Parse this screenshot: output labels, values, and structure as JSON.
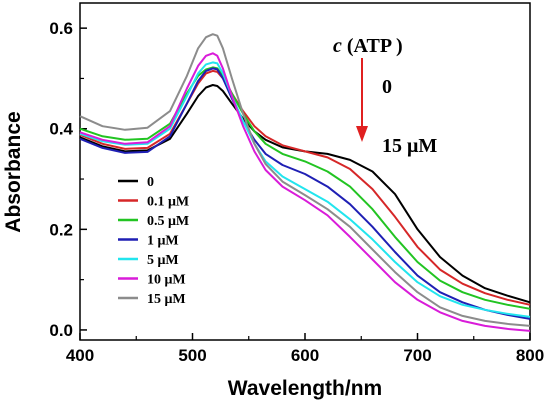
{
  "chart_data": {
    "type": "line",
    "xlabel": "Wavelength/nm",
    "ylabel": "Absorbance",
    "xlim": [
      400,
      800
    ],
    "ylim": [
      -0.02,
      0.65
    ],
    "xticks": [
      400,
      500,
      600,
      700,
      800
    ],
    "yticks": [
      0.0,
      0.2,
      0.4,
      0.6
    ],
    "grid": false,
    "legend_position": "bottom-left",
    "x": [
      400,
      420,
      440,
      460,
      480,
      495,
      505,
      512,
      518,
      522,
      527,
      535,
      545,
      555,
      565,
      580,
      600,
      620,
      640,
      660,
      680,
      700,
      720,
      740,
      760,
      780,
      800
    ],
    "series": [
      {
        "name": "0",
        "color": "#000000",
        "values": [
          0.383,
          0.365,
          0.355,
          0.357,
          0.38,
          0.43,
          0.465,
          0.482,
          0.487,
          0.485,
          0.475,
          0.45,
          0.42,
          0.395,
          0.378,
          0.363,
          0.355,
          0.35,
          0.338,
          0.315,
          0.27,
          0.2,
          0.145,
          0.108,
          0.083,
          0.068,
          0.055
        ]
      },
      {
        "name": "0.1 μM",
        "color": "#d62728",
        "values": [
          0.388,
          0.37,
          0.36,
          0.362,
          0.39,
          0.45,
          0.49,
          0.51,
          0.515,
          0.513,
          0.5,
          0.47,
          0.435,
          0.405,
          0.385,
          0.367,
          0.355,
          0.343,
          0.32,
          0.28,
          0.225,
          0.165,
          0.12,
          0.092,
          0.073,
          0.06,
          0.05
        ]
      },
      {
        "name": "0.5 μM",
        "color": "#22c422",
        "values": [
          0.4,
          0.385,
          0.378,
          0.38,
          0.41,
          0.47,
          0.505,
          0.518,
          0.522,
          0.52,
          0.505,
          0.47,
          0.43,
          0.395,
          0.37,
          0.35,
          0.335,
          0.315,
          0.285,
          0.24,
          0.185,
          0.135,
          0.098,
          0.075,
          0.06,
          0.05,
          0.042
        ]
      },
      {
        "name": "1 μM",
        "color": "#1f1fb4",
        "values": [
          0.38,
          0.362,
          0.352,
          0.354,
          0.385,
          0.45,
          0.495,
          0.515,
          0.52,
          0.518,
          0.5,
          0.46,
          0.415,
          0.378,
          0.35,
          0.328,
          0.31,
          0.285,
          0.25,
          0.205,
          0.155,
          0.108,
          0.075,
          0.055,
          0.04,
          0.03,
          0.022
        ]
      },
      {
        "name": "5 μM",
        "color": "#22e5ee",
        "values": [
          0.39,
          0.375,
          0.368,
          0.37,
          0.4,
          0.465,
          0.51,
          0.528,
          0.532,
          0.53,
          0.51,
          0.465,
          0.415,
          0.37,
          0.335,
          0.305,
          0.28,
          0.255,
          0.22,
          0.18,
          0.135,
          0.095,
          0.067,
          0.05,
          0.04,
          0.032,
          0.026
        ]
      },
      {
        "name": "10 μM",
        "color": "#d91cd9",
        "values": [
          0.393,
          0.378,
          0.37,
          0.373,
          0.405,
          0.48,
          0.525,
          0.545,
          0.55,
          0.545,
          0.52,
          0.465,
          0.405,
          0.355,
          0.318,
          0.285,
          0.258,
          0.228,
          0.185,
          0.14,
          0.095,
          0.06,
          0.035,
          0.018,
          0.008,
          0.002,
          -0.002
        ]
      },
      {
        "name": "15 μM",
        "color": "#8c8c8c",
        "values": [
          0.425,
          0.405,
          0.398,
          0.402,
          0.435,
          0.505,
          0.56,
          0.582,
          0.588,
          0.585,
          0.56,
          0.5,
          0.43,
          0.37,
          0.33,
          0.295,
          0.268,
          0.24,
          0.205,
          0.16,
          0.115,
          0.075,
          0.045,
          0.028,
          0.018,
          0.012,
          0.008
        ]
      }
    ],
    "annotation": {
      "label_italic": "c",
      "label_rest": " (ATP )",
      "start": "0",
      "end": "15 μM",
      "arrow_color": "#e02020",
      "arrow_direction": "down"
    }
  }
}
